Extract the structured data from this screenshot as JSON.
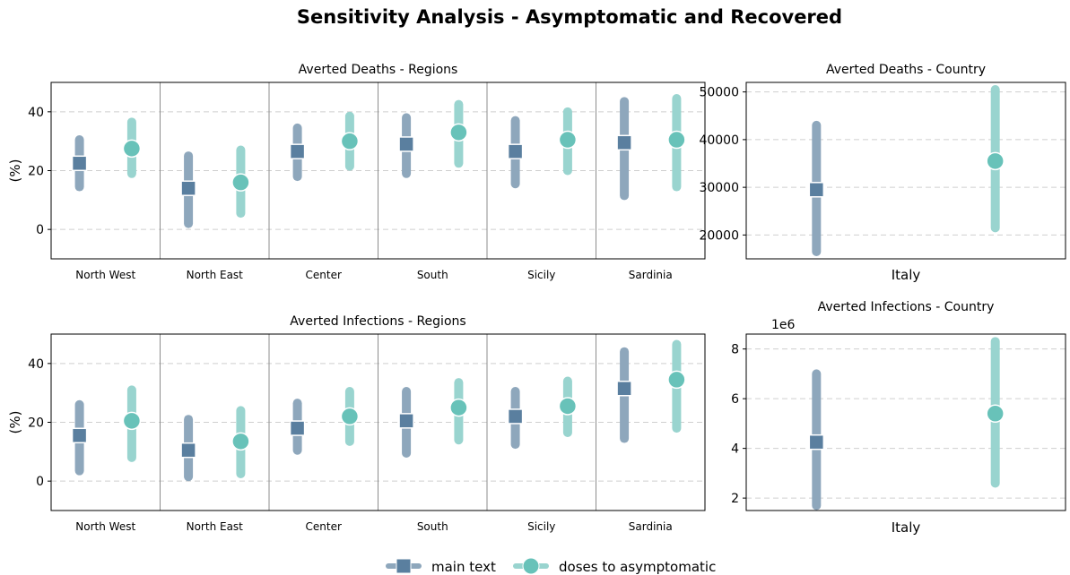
{
  "figure": {
    "title": "Sensitivity Analysis - Asymptomatic and Recovered"
  },
  "legend": {
    "items": [
      {
        "label": "main text",
        "color": "#5a7f9f",
        "marker": "square"
      },
      {
        "label": "doses to asymptomatic",
        "color": "#68c2b9",
        "marker": "circle"
      }
    ],
    "placement": "bottom-center"
  },
  "colors": {
    "main": "#5a7f9f",
    "main_bar": "#8ea7bc",
    "alt": "#68c2b9",
    "alt_bar": "#99d4cf",
    "grid": "#cfcfcf"
  },
  "chart_data": [
    {
      "type": "scatter",
      "title": "Averted Deaths - Regions",
      "ylabel": "(%)",
      "ylim": [
        -10,
        50
      ],
      "yticks": [
        "0",
        "20",
        "40"
      ],
      "ytick_values": [
        0,
        20,
        40
      ],
      "categories": [
        "North West",
        "North East",
        "Center",
        "South",
        "Sicily",
        "Sardinia"
      ],
      "grid": true,
      "series": [
        {
          "name": "main text",
          "values": [
            22.5,
            14,
            26.5,
            29,
            26.5,
            29.5
          ],
          "low": [
            14.5,
            2,
            18,
            19,
            15.5,
            11.5
          ],
          "high": [
            30.5,
            25,
            34.5,
            38,
            37,
            43.5
          ]
        },
        {
          "name": "doses to asymptomatic",
          "values": [
            27.5,
            16,
            30,
            33,
            30.5,
            30.5
          ],
          "low": [
            19,
            5.5,
            21.5,
            22.5,
            20,
            14.5
          ],
          "high": [
            36.5,
            27,
            38.5,
            42.5,
            40,
            44.5
          ]
        }
      ]
    },
    {
      "type": "scatter",
      "title": "Averted Deaths - Country",
      "ylabel": "",
      "ylim": [
        15000,
        52000
      ],
      "yticks": [
        "20000",
        "30000",
        "40000",
        "50000"
      ],
      "ytick_values": [
        20000,
        30000,
        40000,
        50000
      ],
      "categories": [
        "Italy"
      ],
      "grid": true,
      "series": [
        {
          "name": "main text",
          "values": [
            29500
          ],
          "low": [
            16500
          ],
          "high": [
            43000
          ]
        },
        {
          "name": "doses to asymptomatic",
          "values": [
            35500
          ],
          "low": [
            21500
          ],
          "high": [
            50500
          ]
        }
      ]
    },
    {
      "type": "scatter",
      "title": "Averted Infections - Regions",
      "ylabel": "(%)",
      "ylim": [
        -10,
        50
      ],
      "yticks": [
        "0",
        "20",
        "40"
      ],
      "ytick_values": [
        0,
        20,
        40
      ],
      "categories": [
        "North West",
        "North East",
        "Center",
        "South",
        "Sicily",
        "Sardinia"
      ],
      "grid": true,
      "series": [
        {
          "name": "main text",
          "values": [
            15.5,
            10.5,
            18,
            20.5,
            22,
            31.5
          ],
          "low": [
            3.5,
            1.5,
            10.5,
            9.5,
            12.5,
            14.5
          ],
          "high": [
            26,
            21,
            26.5,
            30.5,
            30.5,
            44
          ]
        },
        {
          "name": "doses to asymptomatic",
          "values": [
            20.5,
            13.5,
            22,
            25,
            25.5,
            34.5
          ],
          "low": [
            8,
            2.5,
            13.5,
            14,
            16.5,
            18
          ],
          "high": [
            31,
            24,
            30.5,
            33.5,
            34,
            46.5
          ]
        }
      ]
    },
    {
      "type": "scatter",
      "title": "Averted Infections - Country",
      "ylabel": "",
      "offset_label": "1e6",
      "ylim": [
        1.5,
        8.6
      ],
      "yticks": [
        "2",
        "4",
        "6",
        "8"
      ],
      "ytick_values": [
        2,
        4,
        6,
        8
      ],
      "categories": [
        "Italy"
      ],
      "grid": true,
      "series": [
        {
          "name": "main text",
          "values": [
            4.25
          ],
          "low": [
            1.7
          ],
          "high": [
            7
          ]
        },
        {
          "name": "doses to asymptomatic",
          "values": [
            5.4
          ],
          "low": [
            2.6
          ],
          "high": [
            8.3
          ]
        }
      ]
    }
  ]
}
